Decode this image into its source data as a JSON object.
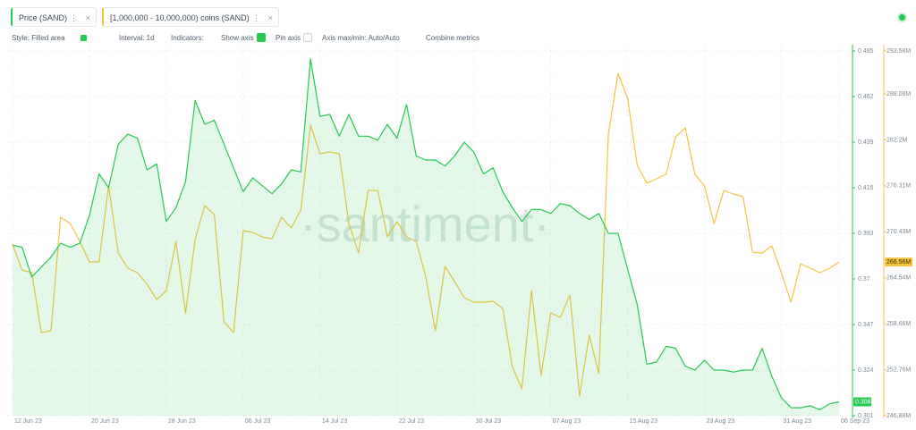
{
  "toolbar": {
    "style": "Style: Filled area",
    "interval": "Interval: 1d",
    "indicators": "Indicators:",
    "show_axis": "Show axis",
    "pin_axis": "Pin axis",
    "axis_minmax": "Axis max/min: Auto/Auto",
    "combine": "Combine metrics"
  },
  "watermark": "·santiment·",
  "chart_data": {
    "type": "line",
    "grid": true,
    "categories": [
      "12 Jun 23",
      null,
      null,
      null,
      null,
      null,
      null,
      null,
      "20 Jun 23",
      null,
      null,
      null,
      null,
      null,
      null,
      null,
      "28 Jun 23",
      null,
      null,
      null,
      null,
      null,
      null,
      null,
      "06 Jul 23",
      null,
      null,
      null,
      null,
      null,
      null,
      null,
      "14 Jul 23",
      null,
      null,
      null,
      null,
      null,
      null,
      null,
      "22 Jul 23",
      null,
      null,
      null,
      null,
      null,
      null,
      null,
      "30 Jul 23",
      null,
      null,
      null,
      null,
      null,
      null,
      null,
      "07 Aug 23",
      null,
      null,
      null,
      null,
      null,
      null,
      null,
      "15 Aug 23",
      null,
      null,
      null,
      null,
      null,
      null,
      null,
      "23 Aug 23",
      null,
      null,
      null,
      null,
      null,
      null,
      null,
      "31 Aug 23",
      null,
      null,
      null,
      null,
      null,
      "06 Sep 23"
    ],
    "ylim": [
      0.301,
      0.485
    ],
    "yticks": [
      0.301,
      0.324,
      0.347,
      0.37,
      0.393,
      0.416,
      0.439,
      0.462,
      0.485
    ],
    "y2lim": [
      246880000,
      293580000
    ],
    "y2ticks": [
      {
        "value": 246880000,
        "label": "246.88M"
      },
      {
        "value": 252760000,
        "label": "252.76M"
      },
      {
        "value": 258660000,
        "label": "258.66M"
      },
      {
        "value": 264540000,
        "label": "264.54M"
      },
      {
        "value": 270430000,
        "label": "270.43M"
      },
      {
        "value": 276310000,
        "label": "276.31M"
      },
      {
        "value": 282200000,
        "label": "282.2M"
      },
      {
        "value": 288080000,
        "label": "288.08M"
      },
      {
        "value": 293580000,
        "label": "293.58M"
      }
    ],
    "series": [
      {
        "name": "Price (SAND)",
        "color": "#26c953",
        "area": true,
        "values": [
          0.387,
          0.386,
          0.371,
          0.376,
          0.381,
          0.388,
          0.386,
          0.388,
          0.402,
          0.423,
          0.416,
          0.438,
          0.443,
          0.441,
          0.425,
          0.428,
          0.399,
          0.406,
          0.419,
          0.46,
          0.448,
          0.45,
          0.438,
          0.426,
          0.414,
          0.421,
          0.417,
          0.413,
          0.418,
          0.425,
          0.424,
          0.481,
          0.452,
          0.453,
          0.442,
          0.453,
          0.442,
          0.442,
          0.44,
          0.448,
          0.441,
          0.458,
          0.432,
          0.43,
          0.43,
          0.427,
          0.432,
          0.439,
          0.434,
          0.423,
          0.426,
          0.414,
          0.406,
          0.399,
          0.405,
          0.405,
          0.403,
          0.408,
          0.407,
          0.403,
          0.4,
          0.403,
          0.393,
          0.393,
          0.375,
          0.357,
          0.327,
          0.328,
          0.336,
          0.335,
          0.326,
          0.324,
          0.329,
          0.324,
          0.324,
          0.323,
          0.324,
          0.324,
          0.335,
          0.321,
          0.31,
          0.305,
          0.305,
          0.306,
          0.304,
          0.307,
          0.308
        ]
      },
      {
        "name": "[1,000,000 - 10,000,000) coins (SAND)",
        "color": "#f5c342",
        "axis": "y2",
        "values": [
          268860000,
          265540000,
          265190000,
          257530000,
          257750000,
          272290000,
          271490000,
          269200000,
          266570000,
          266570000,
          276300000,
          267710000,
          265770000,
          265190000,
          263710000,
          261760000,
          262900000,
          269200000,
          260040000,
          269430000,
          273780000,
          272630000,
          258900000,
          257530000,
          270570000,
          270340000,
          269770000,
          269540000,
          272290000,
          270920000,
          273210000,
          284080000,
          280420000,
          280650000,
          280420000,
          271490000,
          267710000,
          275720000,
          275720000,
          269770000,
          271720000,
          269770000,
          269200000,
          264620000,
          257750000,
          266000000,
          264050000,
          261990000,
          261420000,
          261420000,
          261530000,
          260620000,
          253180000,
          250310000,
          262900000,
          252030000,
          260040000,
          259470000,
          262330000,
          249400000,
          257180000,
          252260000,
          282940000,
          290720000,
          287510000,
          278930000,
          276640000,
          277210000,
          277780000,
          282590000,
          283740000,
          277780000,
          276300000,
          271490000,
          275720000,
          275270000,
          274920000,
          267830000,
          267710000,
          268630000,
          265190000,
          261420000,
          266340000,
          265770000,
          265190000,
          265770000,
          266560000
        ],
        "value_labels": [
          null,
          null,
          null,
          null,
          null,
          null,
          null,
          null,
          null,
          null,
          null,
          null,
          null,
          null,
          null,
          null,
          null,
          null,
          null,
          null,
          null,
          null,
          null,
          null,
          null,
          null,
          null,
          null,
          null,
          null,
          null,
          null,
          null,
          null,
          null,
          null,
          null,
          null,
          null,
          null,
          null,
          null,
          null,
          null,
          null,
          null,
          null,
          null,
          null,
          null,
          null,
          null,
          null,
          null,
          null,
          null,
          null,
          null,
          null,
          null,
          null,
          null,
          null,
          null,
          null,
          null,
          null,
          null,
          null,
          null,
          null,
          null,
          null,
          null,
          null,
          null,
          null,
          null,
          null,
          null,
          null,
          null,
          null,
          null,
          null,
          null,
          "266.56M"
        ]
      }
    ]
  }
}
